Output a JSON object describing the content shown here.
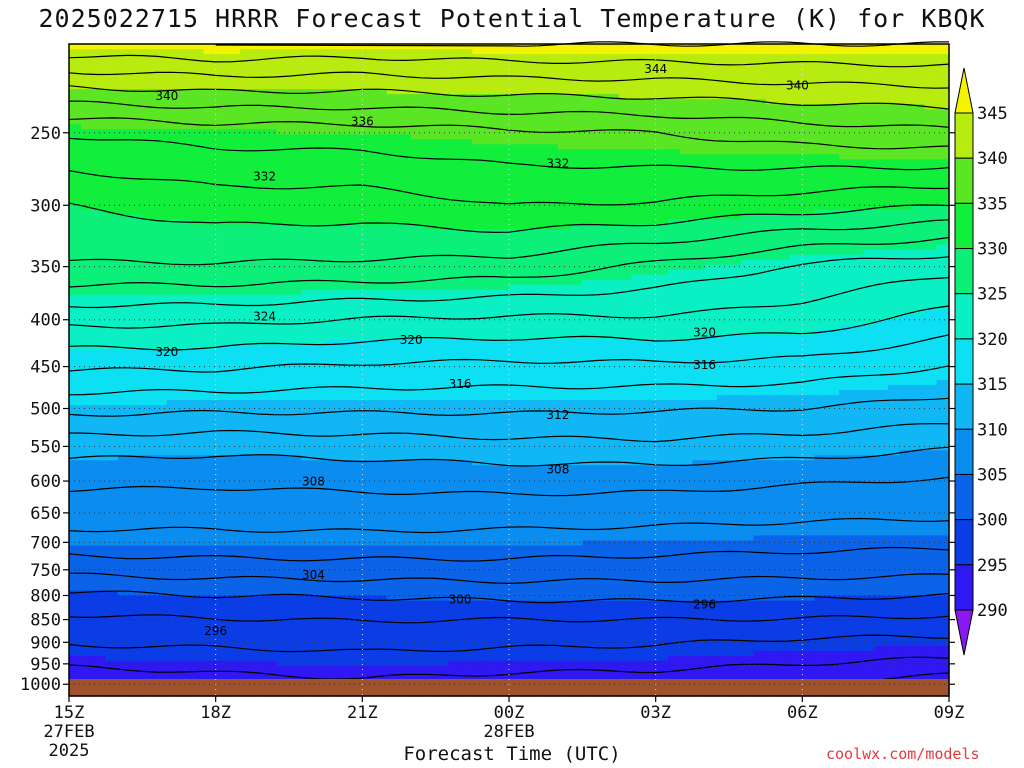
{
  "chart_data": {
    "type": "heatmap",
    "title": "2025022715 HRRR Forecast Potential Temperature (K) for KBQK",
    "xlabel": "Forecast Time (UTC)",
    "credit": "coolwx.com/models",
    "x_ticks": [
      {
        "hour": 0,
        "label": "15Z",
        "sub1": "27FEB",
        "sub2": "2025"
      },
      {
        "hour": 3,
        "label": "18Z",
        "sub1": "",
        "sub2": ""
      },
      {
        "hour": 6,
        "label": "21Z",
        "sub1": "",
        "sub2": ""
      },
      {
        "hour": 9,
        "label": "00Z",
        "sub1": "28FEB",
        "sub2": ""
      },
      {
        "hour": 12,
        "label": "03Z",
        "sub1": "",
        "sub2": ""
      },
      {
        "hour": 15,
        "label": "06Z",
        "sub1": "",
        "sub2": ""
      },
      {
        "hour": 18,
        "label": "09Z",
        "sub1": "",
        "sub2": ""
      }
    ],
    "y_ticks": [
      250,
      300,
      350,
      400,
      450,
      500,
      550,
      600,
      650,
      700,
      750,
      800,
      850,
      900,
      950,
      1000
    ],
    "y_range_hpa": [
      200,
      1030
    ],
    "y_scale": "log",
    "colorbar": {
      "levels": [
        290,
        295,
        300,
        305,
        310,
        315,
        320,
        325,
        330,
        335,
        340,
        345
      ],
      "colors": [
        "#8a18f0",
        "#2f18f2",
        "#0a3de6",
        "#0b63e8",
        "#0b8df0",
        "#11b7f5",
        "#0de0f2",
        "#0af0c4",
        "#0cf07a",
        "#12ee3c",
        "#5ae624",
        "#b8ec10",
        "#f4f400"
      ]
    },
    "theta_profiles": [
      {
        "hour": 0,
        "levels_hpa": [
          1000,
          950,
          900,
          850,
          800,
          750,
          700,
          650,
          600,
          550,
          500,
          450,
          400,
          350,
          300,
          250,
          200
        ],
        "theta_k": [
          291.5,
          294.5,
          296.2,
          297.6,
          299.6,
          302.6,
          305.3,
          306.9,
          308.4,
          310.9,
          314.6,
          318.3,
          322.6,
          327.8,
          330.0,
          334.2,
          345.5
        ]
      },
      {
        "hour": 3,
        "levels_hpa": [
          1000,
          950,
          900,
          850,
          800,
          750,
          700,
          650,
          600,
          550,
          500,
          450,
          400,
          350,
          300,
          250,
          200
        ],
        "theta_k": [
          293.0,
          294.8,
          296.4,
          297.9,
          300.0,
          303.0,
          305.3,
          306.9,
          308.3,
          310.6,
          314.4,
          318.3,
          322.5,
          327.8,
          331.0,
          334.8,
          346.0
        ]
      },
      {
        "hour": 6,
        "levels_hpa": [
          1000,
          950,
          900,
          850,
          800,
          750,
          700,
          650,
          600,
          550,
          500,
          450,
          400,
          350,
          300,
          250,
          200
        ],
        "theta_k": [
          293.5,
          295.2,
          296.6,
          298.1,
          300.2,
          303.1,
          305.4,
          307.0,
          308.5,
          310.9,
          314.4,
          317.7,
          321.9,
          327.6,
          331.0,
          335.0,
          345.6
        ]
      },
      {
        "hour": 9,
        "levels_hpa": [
          1000,
          950,
          900,
          850,
          800,
          750,
          700,
          650,
          600,
          550,
          500,
          450,
          400,
          350,
          300,
          250,
          200
        ],
        "theta_k": [
          293.0,
          294.8,
          296.4,
          298.0,
          300.5,
          303.2,
          305.2,
          307.0,
          308.7,
          311.3,
          314.4,
          317.5,
          321.6,
          327.2,
          332.0,
          335.6,
          346.0
        ]
      },
      {
        "hour": 12,
        "levels_hpa": [
          1000,
          950,
          900,
          850,
          800,
          750,
          700,
          650,
          600,
          550,
          500,
          450,
          400,
          350,
          300,
          250,
          200
        ],
        "theta_k": [
          292.5,
          294.7,
          296.2,
          298.0,
          300.6,
          303.0,
          304.9,
          306.9,
          308.6,
          311.5,
          314.2,
          317.6,
          321.7,
          325.6,
          331.8,
          336.0,
          346.0
        ]
      },
      {
        "hour": 15,
        "levels_hpa": [
          1000,
          950,
          900,
          850,
          800,
          750,
          700,
          650,
          600,
          550,
          500,
          450,
          400,
          350,
          300,
          250,
          200
        ],
        "theta_k": [
          291.8,
          294.0,
          295.6,
          297.9,
          300.3,
          302.8,
          304.6,
          306.6,
          308.2,
          311.0,
          314.0,
          317.3,
          321.1,
          323.7,
          330.9,
          337.0,
          346.0
        ]
      },
      {
        "hour": 18,
        "levels_hpa": [
          1000,
          950,
          900,
          850,
          800,
          750,
          700,
          650,
          600,
          550,
          500,
          450,
          400,
          350,
          300,
          250,
          200
        ],
        "theta_k": [
          290.8,
          293.5,
          295.4,
          297.6,
          300.0,
          302.6,
          304.4,
          306.4,
          307.8,
          310.2,
          313.2,
          315.9,
          319.2,
          322.6,
          330.0,
          337.6,
          346.0
        ]
      }
    ],
    "contour_labels": [
      {
        "text": "340",
        "hour": 2.0,
        "hpa": 228
      },
      {
        "text": "344",
        "hour": 12.0,
        "hpa": 213
      },
      {
        "text": "340",
        "hour": 14.9,
        "hpa": 222
      },
      {
        "text": "336",
        "hour": 6.0,
        "hpa": 243
      },
      {
        "text": "332",
        "hour": 4.0,
        "hpa": 279
      },
      {
        "text": "332",
        "hour": 10.0,
        "hpa": 270
      },
      {
        "text": "324",
        "hour": 4.0,
        "hpa": 397
      },
      {
        "text": "320",
        "hour": 2.0,
        "hpa": 434
      },
      {
        "text": "320",
        "hour": 7.0,
        "hpa": 421
      },
      {
        "text": "320",
        "hour": 13.0,
        "hpa": 413
      },
      {
        "text": "316",
        "hour": 8.0,
        "hpa": 470
      },
      {
        "text": "316",
        "hour": 13.0,
        "hpa": 448
      },
      {
        "text": "312",
        "hour": 10.0,
        "hpa": 508
      },
      {
        "text": "308",
        "hour": 5.0,
        "hpa": 601
      },
      {
        "text": "308",
        "hour": 10.0,
        "hpa": 583
      },
      {
        "text": "304",
        "hour": 5.0,
        "hpa": 760
      },
      {
        "text": "300",
        "hour": 8.0,
        "hpa": 808
      },
      {
        "text": "296",
        "hour": 3.0,
        "hpa": 875
      },
      {
        "text": "296",
        "hour": 13.0,
        "hpa": 818
      }
    ]
  }
}
